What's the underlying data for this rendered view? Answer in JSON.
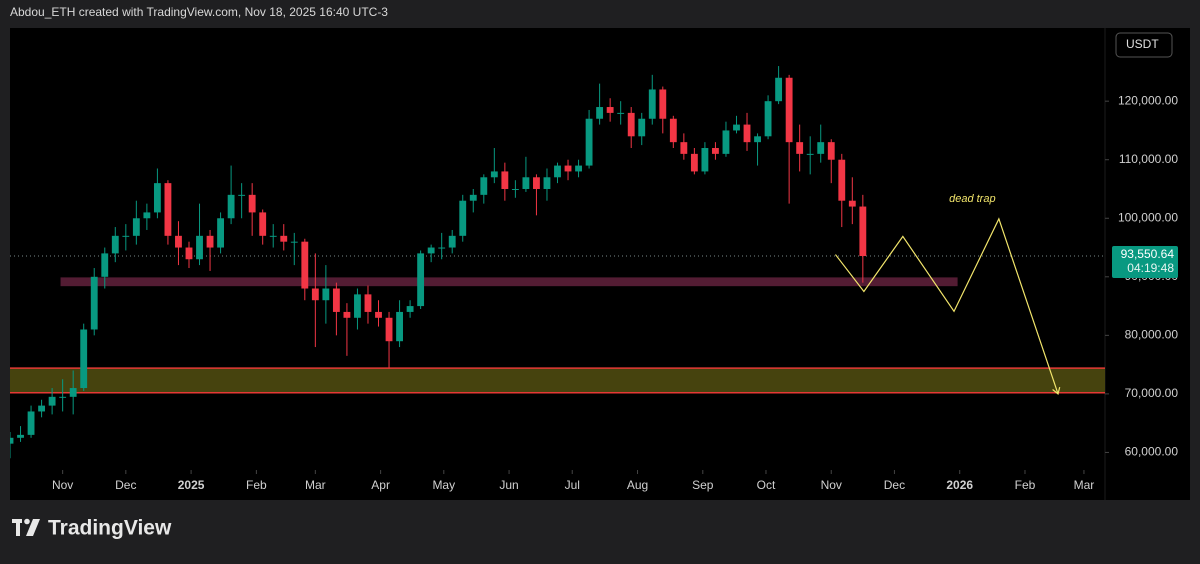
{
  "header": {
    "text": "Abdou_ETH created with TradingView.com, Nov 18, 2025 16:40 UTC-3"
  },
  "currency": "USDT",
  "footer": {
    "brand": "TradingView"
  },
  "chart_data": {
    "type": "candlestick",
    "up_color": "#089981",
    "down_color": "#f23645",
    "xlim": [
      -25,
      495
    ],
    "xticks": [
      {
        "value": 0,
        "label": "Nov"
      },
      {
        "value": 30,
        "label": "Dec"
      },
      {
        "value": 61,
        "label": "2025"
      },
      {
        "value": 92,
        "label": "Feb"
      },
      {
        "value": 120,
        "label": "Mar"
      },
      {
        "value": 151,
        "label": "Apr"
      },
      {
        "value": 181,
        "label": "May"
      },
      {
        "value": 212,
        "label": "Jun"
      },
      {
        "value": 242,
        "label": "Jul"
      },
      {
        "value": 273,
        "label": "Aug"
      },
      {
        "value": 304,
        "label": "Sep"
      },
      {
        "value": 334,
        "label": "Oct"
      },
      {
        "value": 365,
        "label": "Nov"
      },
      {
        "value": 395,
        "label": "Dec"
      },
      {
        "value": 426,
        "label": "2026"
      },
      {
        "value": 457,
        "label": "Feb"
      },
      {
        "value": 485,
        "label": "Mar"
      }
    ],
    "ylim": [
      57000,
      132500
    ],
    "yticks": [
      {
        "value": 60000,
        "label": "60,000.00"
      },
      {
        "value": 70000,
        "label": "70,000.00"
      },
      {
        "value": 80000,
        "label": "80,000.00"
      },
      {
        "value": 90000,
        "label": "90,000.00"
      },
      {
        "value": 100000,
        "label": "100,000.00"
      },
      {
        "value": 110000,
        "label": "110,000.00"
      },
      {
        "value": 120000,
        "label": "120,000.00"
      }
    ],
    "candles": [
      [
        -25,
        61500,
        63500,
        59000,
        62500
      ],
      [
        -20,
        62500,
        64500,
        61800,
        63000
      ],
      [
        -15,
        63000,
        68000,
        62500,
        67000
      ],
      [
        -10,
        67000,
        69000,
        66000,
        68000
      ],
      [
        -5,
        68000,
        71000,
        66500,
        69500
      ],
      [
        0,
        69500,
        72500,
        67000,
        69500
      ],
      [
        5,
        69500,
        74000,
        66500,
        71000
      ],
      [
        10,
        71000,
        82000,
        70500,
        81000
      ],
      [
        15,
        81000,
        91500,
        80000,
        90000
      ],
      [
        20,
        90000,
        95000,
        88000,
        94000
      ],
      [
        25,
        94000,
        98500,
        92500,
        97000
      ],
      [
        30,
        97000,
        99000,
        94500,
        97000
      ],
      [
        35,
        97000,
        103000,
        95500,
        100000
      ],
      [
        40,
        100000,
        102500,
        98000,
        101000
      ],
      [
        45,
        101000,
        108500,
        100000,
        106000
      ],
      [
        50,
        106000,
        106500,
        95500,
        97000
      ],
      [
        55,
        97000,
        99500,
        92000,
        95000
      ],
      [
        60,
        95000,
        96000,
        91500,
        93000
      ],
      [
        65,
        93000,
        102500,
        92000,
        97000
      ],
      [
        70,
        97000,
        98000,
        91000,
        95000
      ],
      [
        75,
        95000,
        101000,
        94000,
        100000
      ],
      [
        80,
        100000,
        109000,
        99000,
        104000
      ],
      [
        85,
        104000,
        106000,
        100000,
        104000
      ],
      [
        90,
        104000,
        106000,
        97000,
        101000
      ],
      [
        95,
        101000,
        101500,
        95500,
        97000
      ],
      [
        100,
        97000,
        99000,
        95000,
        97000
      ],
      [
        105,
        97000,
        99000,
        94500,
        96000
      ],
      [
        110,
        96000,
        97500,
        92000,
        96000
      ],
      [
        115,
        96000,
        96500,
        86000,
        88000
      ],
      [
        120,
        88000,
        94000,
        78000,
        86000
      ],
      [
        125,
        86000,
        92000,
        82000,
        88000
      ],
      [
        130,
        88000,
        89000,
        80000,
        84000
      ],
      [
        135,
        84000,
        85500,
        76500,
        83000
      ],
      [
        140,
        83000,
        88000,
        81000,
        87000
      ],
      [
        145,
        87000,
        88500,
        82000,
        84000
      ],
      [
        150,
        84000,
        86000,
        81500,
        83000
      ],
      [
        155,
        83000,
        84000,
        74500,
        79000
      ],
      [
        160,
        79000,
        86000,
        78000,
        84000
      ],
      [
        165,
        84000,
        86000,
        83000,
        85000
      ],
      [
        170,
        85000,
        94500,
        84500,
        94000
      ],
      [
        175,
        94000,
        95500,
        92500,
        95000
      ],
      [
        180,
        95000,
        97500,
        93000,
        95000
      ],
      [
        185,
        95000,
        98000,
        94000,
        97000
      ],
      [
        190,
        97000,
        104000,
        96000,
        103000
      ],
      [
        195,
        103000,
        105000,
        101000,
        104000
      ],
      [
        200,
        104000,
        107500,
        102500,
        107000
      ],
      [
        205,
        107000,
        112000,
        106000,
        108000
      ],
      [
        210,
        108000,
        109500,
        103000,
        105000
      ],
      [
        215,
        105000,
        106500,
        103500,
        105000
      ],
      [
        220,
        105000,
        110500,
        104500,
        107000
      ],
      [
        225,
        107000,
        107500,
        100500,
        105000
      ],
      [
        230,
        105000,
        108500,
        103000,
        107000
      ],
      [
        235,
        107000,
        109500,
        106000,
        109000
      ],
      [
        240,
        109000,
        110000,
        106500,
        108000
      ],
      [
        245,
        108000,
        110000,
        107000,
        109000
      ],
      [
        250,
        109000,
        118500,
        108500,
        117000
      ],
      [
        255,
        117000,
        123000,
        116000,
        119000
      ],
      [
        260,
        119000,
        120500,
        116500,
        118000
      ],
      [
        265,
        118000,
        120000,
        116000,
        118000
      ],
      [
        270,
        118000,
        119000,
        112000,
        114000
      ],
      [
        275,
        114000,
        118000,
        112500,
        117000
      ],
      [
        280,
        117000,
        124500,
        116000,
        122000
      ],
      [
        285,
        122000,
        122500,
        114500,
        117000
      ],
      [
        290,
        117000,
        117500,
        112000,
        113000
      ],
      [
        295,
        113000,
        114500,
        110000,
        111000
      ],
      [
        300,
        111000,
        112000,
        107500,
        108000
      ],
      [
        305,
        108000,
        113000,
        107500,
        112000
      ],
      [
        310,
        112000,
        113000,
        110000,
        111000
      ],
      [
        315,
        111000,
        116500,
        110500,
        115000
      ],
      [
        320,
        115000,
        117500,
        114500,
        116000
      ],
      [
        325,
        116000,
        118000,
        111500,
        113000
      ],
      [
        330,
        113000,
        114500,
        109000,
        114000
      ],
      [
        335,
        114000,
        121000,
        113500,
        120000
      ],
      [
        340,
        120000,
        126000,
        119500,
        124000
      ],
      [
        345,
        124000,
        124500,
        102500,
        113000
      ],
      [
        350,
        113000,
        116000,
        108000,
        111000
      ],
      [
        355,
        111000,
        114000,
        107500,
        111000
      ],
      [
        360,
        111000,
        116000,
        109500,
        113000
      ],
      [
        365,
        113000,
        113500,
        106000,
        110000
      ],
      [
        370,
        110000,
        111000,
        98500,
        103000
      ],
      [
        375,
        103000,
        107000,
        99000,
        102000
      ],
      [
        380,
        102000,
        104000,
        89000,
        93550.64
      ]
    ],
    "last_price": {
      "value": 93550.64,
      "label": "93,550.64"
    },
    "countdown": "04:19:48",
    "zones": [
      {
        "low": 88400,
        "high": 89900,
        "x0": -1,
        "x1": 425,
        "color": "#5c1f38"
      },
      {
        "low": 70200,
        "high": 74400,
        "color": "#4e4a10",
        "border": "#e53935"
      }
    ],
    "projection": {
      "color": "#f2e56b",
      "x": [
        367,
        380.5,
        399,
        423.3,
        444.6,
        472.7
      ],
      "y": [
        93800,
        87500,
        96900,
        84100,
        99900,
        70000
      ]
    },
    "annotation": {
      "text": "dead trap",
      "x": 432,
      "y": 103300
    }
  }
}
